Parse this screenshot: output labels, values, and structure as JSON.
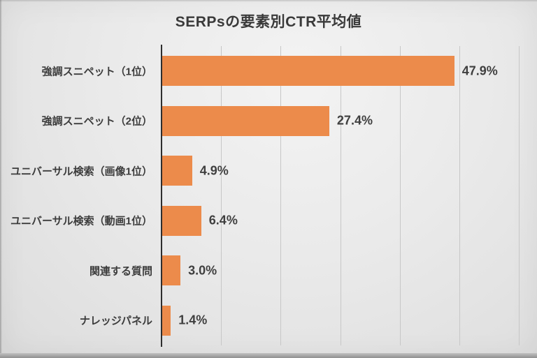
{
  "title": "SERPsの要素別CTR平均値",
  "chart_data": {
    "type": "bar",
    "orientation": "horizontal",
    "title": "SERPsの要素別CTR平均値",
    "categories": [
      "強調スニペット（1位）",
      "強調スニペット（2位）",
      "ユニバーサル検索（画像1位）",
      "ユニバーサル検索（動画1位）",
      "関連する質問",
      "ナレッジパネル"
    ],
    "values": [
      47.9,
      27.4,
      4.9,
      6.4,
      3.0,
      1.4
    ],
    "value_labels": [
      "47.9%",
      "27.4%",
      "4.9%",
      "6.4%",
      "3.0%",
      "1.4%"
    ],
    "xlabel": "",
    "ylabel": "",
    "xlim": [
      0,
      61.6
    ],
    "x_tick_labels_visible": false,
    "gridline_count": 6,
    "grid": "vertical",
    "legend": "none",
    "colors": {
      "bar": "#EC8B4B",
      "axis": "#2e2e2e",
      "gridline": "#c7c7c7",
      "text": "#3c3c3c",
      "background": "#e9e9e9"
    }
  }
}
